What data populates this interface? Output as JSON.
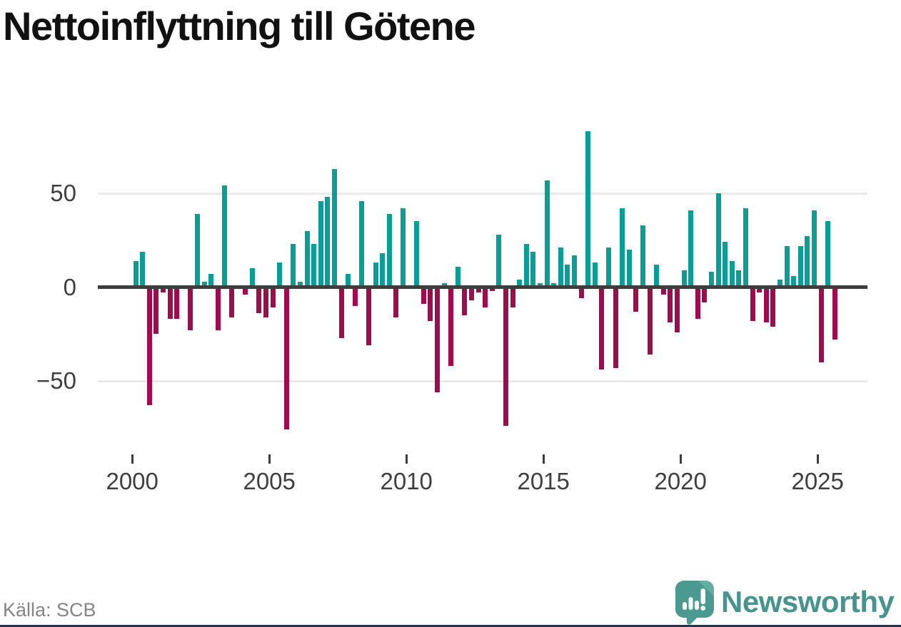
{
  "title": "Nettoinflyttning till Götene",
  "source": "Källa: SCB",
  "logo": {
    "brand": "Newsworthy"
  },
  "colors": {
    "positive": "#089e97",
    "negative": "#9e0c4e",
    "axis": "#3d3d3d",
    "gridline": "#e9e9e9",
    "tick_label": "#3f3f3f",
    "title": "#111111",
    "source_text": "#858585",
    "logo_teal": "#46948d",
    "logo_icon": "#4a9a91",
    "logo_icon_fold": "#5fae9f",
    "bottom_strip": "#263450"
  },
  "chart_data": {
    "type": "bar",
    "title": "Nettoinflyttning till Götene",
    "xlabel": "",
    "ylabel": "",
    "legend": "none",
    "grid": "horizontal",
    "ylim": [
      -85,
      90
    ],
    "yticks": [
      {
        "label": "50",
        "value": 50
      },
      {
        "label": "0",
        "value": 0
      },
      {
        "label": "−50",
        "value": -50
      }
    ],
    "xticks": [
      {
        "label": "2000",
        "year": 2000
      },
      {
        "label": "2005",
        "year": 2005
      },
      {
        "label": "2010",
        "year": 2010
      },
      {
        "label": "2015",
        "year": 2015
      },
      {
        "label": "2020",
        "year": 2020
      },
      {
        "label": "2025",
        "year": 2025
      }
    ],
    "x": [
      "2000 Q1",
      "2000 Q2",
      "2000 Q3",
      "2000 Q4",
      "2001 Q1",
      "2001 Q2",
      "2001 Q3",
      "2001 Q4",
      "2002 Q1",
      "2002 Q2",
      "2002 Q3",
      "2002 Q4",
      "2003 Q1",
      "2003 Q2",
      "2003 Q3",
      "2003 Q4",
      "2004 Q1",
      "2004 Q2",
      "2004 Q3",
      "2004 Q4",
      "2005 Q1",
      "2005 Q2",
      "2005 Q3",
      "2005 Q4",
      "2006 Q1",
      "2006 Q2",
      "2006 Q3",
      "2006 Q4",
      "2007 Q1",
      "2007 Q2",
      "2007 Q3",
      "2007 Q4",
      "2008 Q1",
      "2008 Q2",
      "2008 Q3",
      "2008 Q4",
      "2009 Q1",
      "2009 Q2",
      "2009 Q3",
      "2009 Q4",
      "2010 Q1",
      "2010 Q2",
      "2010 Q3",
      "2010 Q4",
      "2011 Q1",
      "2011 Q2",
      "2011 Q3",
      "2011 Q4",
      "2012 Q1",
      "2012 Q2",
      "2012 Q3",
      "2012 Q4",
      "2013 Q1",
      "2013 Q2",
      "2013 Q3",
      "2013 Q4",
      "2014 Q1",
      "2014 Q2",
      "2014 Q3",
      "2014 Q4",
      "2015 Q1",
      "2015 Q2",
      "2015 Q3",
      "2015 Q4",
      "2016 Q1",
      "2016 Q2",
      "2016 Q3",
      "2016 Q4",
      "2017 Q1",
      "2017 Q2",
      "2017 Q3",
      "2017 Q4",
      "2018 Q1",
      "2018 Q2",
      "2018 Q3",
      "2018 Q4",
      "2019 Q1",
      "2019 Q2",
      "2019 Q3",
      "2019 Q4",
      "2020 Q1",
      "2020 Q2",
      "2020 Q3",
      "2020 Q4",
      "2021 Q1",
      "2021 Q2",
      "2021 Q3",
      "2021 Q4",
      "2022 Q1",
      "2022 Q2",
      "2022 Q3",
      "2022 Q4",
      "2023 Q1",
      "2023 Q2",
      "2023 Q3",
      "2023 Q4",
      "2024 Q1",
      "2024 Q2",
      "2024 Q3",
      "2024 Q4",
      "2025 Q1",
      "2025 Q2",
      "2025 Q3"
    ],
    "values": [
      14,
      19,
      -63,
      -25,
      -3,
      -17,
      -17,
      0,
      -23,
      39,
      3,
      7,
      -23,
      54,
      -16,
      0,
      -4,
      10,
      -14,
      -16,
      -11,
      13,
      -76,
      23,
      3,
      30,
      23,
      46,
      48,
      63,
      -27,
      7,
      -10,
      46,
      -31,
      13,
      18,
      39,
      -16,
      42,
      0,
      35,
      -9,
      -18,
      -56,
      2,
      -42,
      11,
      -15,
      -7,
      -3,
      -11,
      -2,
      28,
      -74,
      -11,
      4,
      23,
      19,
      2,
      57,
      2,
      21,
      12,
      17,
      -6,
      83,
      13,
      -44,
      21,
      -43,
      42,
      20,
      -13,
      33,
      -36,
      12,
      -4,
      -19,
      -24,
      9,
      41,
      -17,
      -8,
      8,
      50,
      24,
      14,
      9,
      42,
      -18,
      -3,
      -19,
      -21,
      4,
      22,
      6,
      22,
      27,
      41,
      -40,
      35,
      -28
    ]
  }
}
